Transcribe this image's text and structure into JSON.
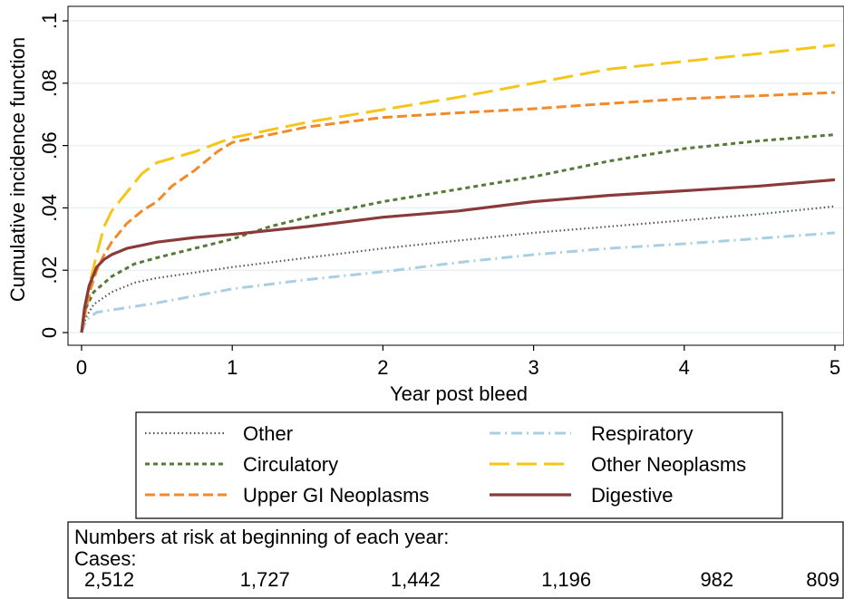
{
  "chart_data": {
    "type": "line",
    "title": "",
    "xlabel": "Year post bleed",
    "ylabel": "Cumulative incidence function",
    "xlim": [
      0,
      5
    ],
    "ylim": [
      0,
      0.1
    ],
    "x_ticks": [
      0,
      1,
      2,
      3,
      4,
      5
    ],
    "x_tick_labels": [
      "0",
      "1",
      "2",
      "3",
      "4",
      "5"
    ],
    "y_ticks": [
      0,
      0.02,
      0.04,
      0.06,
      0.08,
      0.1
    ],
    "y_tick_labels": [
      "0",
      ".02",
      ".04",
      ".06",
      ".08",
      ".1"
    ],
    "grid": true,
    "legend_position": "bottom",
    "series": [
      {
        "name": "Other",
        "color": "#555555",
        "style": "dotted",
        "points": [
          [
            0,
            0
          ],
          [
            0.03,
            0.005
          ],
          [
            0.08,
            0.009
          ],
          [
            0.2,
            0.013
          ],
          [
            0.35,
            0.016
          ],
          [
            0.5,
            0.0175
          ],
          [
            1,
            0.021
          ],
          [
            1.5,
            0.024
          ],
          [
            2,
            0.027
          ],
          [
            2.5,
            0.0295
          ],
          [
            3,
            0.032
          ],
          [
            3.5,
            0.034
          ],
          [
            4,
            0.036
          ],
          [
            4.5,
            0.038
          ],
          [
            5,
            0.0405
          ]
        ]
      },
      {
        "name": "Respiratory",
        "color": "#a8d0e0",
        "style": "dashdot",
        "points": [
          [
            0,
            0
          ],
          [
            0.03,
            0.004
          ],
          [
            0.1,
            0.0065
          ],
          [
            0.3,
            0.008
          ],
          [
            0.5,
            0.0095
          ],
          [
            1,
            0.014
          ],
          [
            1.5,
            0.017
          ],
          [
            2,
            0.0195
          ],
          [
            2.5,
            0.0225
          ],
          [
            3,
            0.025
          ],
          [
            3.5,
            0.027
          ],
          [
            4,
            0.0285
          ],
          [
            4.5,
            0.0302
          ],
          [
            5,
            0.032
          ]
        ]
      },
      {
        "name": "Circulatory",
        "color": "#557a3a",
        "style": "short-dash",
        "points": [
          [
            0,
            0
          ],
          [
            0.03,
            0.008
          ],
          [
            0.08,
            0.013
          ],
          [
            0.2,
            0.018
          ],
          [
            0.35,
            0.022
          ],
          [
            0.5,
            0.024
          ],
          [
            0.75,
            0.027
          ],
          [
            1,
            0.03
          ],
          [
            1.25,
            0.034
          ],
          [
            1.5,
            0.037
          ],
          [
            2,
            0.042
          ],
          [
            2.5,
            0.046
          ],
          [
            3,
            0.05
          ],
          [
            3.5,
            0.055
          ],
          [
            4,
            0.059
          ],
          [
            4.5,
            0.0615
          ],
          [
            5,
            0.0635
          ]
        ]
      },
      {
        "name": "Other Neoplasms",
        "color": "#f5c518",
        "style": "long-dash",
        "points": [
          [
            0,
            0
          ],
          [
            0.03,
            0.01
          ],
          [
            0.06,
            0.017
          ],
          [
            0.1,
            0.025
          ],
          [
            0.15,
            0.034
          ],
          [
            0.2,
            0.039
          ],
          [
            0.3,
            0.045
          ],
          [
            0.4,
            0.051
          ],
          [
            0.5,
            0.0545
          ],
          [
            0.75,
            0.058
          ],
          [
            1,
            0.0625
          ],
          [
            1.25,
            0.065
          ],
          [
            1.5,
            0.0675
          ],
          [
            2,
            0.0715
          ],
          [
            2.5,
            0.0755
          ],
          [
            3,
            0.08
          ],
          [
            3.5,
            0.0845
          ],
          [
            4,
            0.087
          ],
          [
            4.5,
            0.0895
          ],
          [
            5,
            0.0922
          ]
        ]
      },
      {
        "name": "Upper GI Neoplasms",
        "color": "#f28a28",
        "style": "medium-dash",
        "points": [
          [
            0,
            0
          ],
          [
            0.03,
            0.008
          ],
          [
            0.06,
            0.014
          ],
          [
            0.1,
            0.02
          ],
          [
            0.15,
            0.025
          ],
          [
            0.2,
            0.029
          ],
          [
            0.3,
            0.035
          ],
          [
            0.4,
            0.039
          ],
          [
            0.5,
            0.042
          ],
          [
            0.6,
            0.047
          ],
          [
            0.75,
            0.052
          ],
          [
            0.9,
            0.058
          ],
          [
            1,
            0.061
          ],
          [
            1.25,
            0.0635
          ],
          [
            1.5,
            0.066
          ],
          [
            2,
            0.069
          ],
          [
            2.5,
            0.0705
          ],
          [
            3,
            0.0718
          ],
          [
            3.5,
            0.0735
          ],
          [
            4,
            0.075
          ],
          [
            4.5,
            0.076
          ],
          [
            5,
            0.077
          ]
        ]
      },
      {
        "name": "Digestive",
        "color": "#8b3a3a",
        "style": "solid",
        "points": [
          [
            0,
            0
          ],
          [
            0.02,
            0.008
          ],
          [
            0.05,
            0.015
          ],
          [
            0.1,
            0.021
          ],
          [
            0.15,
            0.0235
          ],
          [
            0.2,
            0.025
          ],
          [
            0.3,
            0.027
          ],
          [
            0.4,
            0.028
          ],
          [
            0.5,
            0.029
          ],
          [
            0.75,
            0.0305
          ],
          [
            1,
            0.0315
          ],
          [
            1.5,
            0.034
          ],
          [
            2,
            0.037
          ],
          [
            2.5,
            0.039
          ],
          [
            3,
            0.042
          ],
          [
            3.5,
            0.044
          ],
          [
            4,
            0.0455
          ],
          [
            4.5,
            0.047
          ],
          [
            5,
            0.049
          ]
        ]
      }
    ],
    "risk_table": {
      "heading": "Numbers at risk at beginning of each year:",
      "group_label": "Cases:",
      "values": [
        "2,512",
        "1,727",
        "1,442",
        "1,196",
        "982",
        "809"
      ]
    }
  }
}
